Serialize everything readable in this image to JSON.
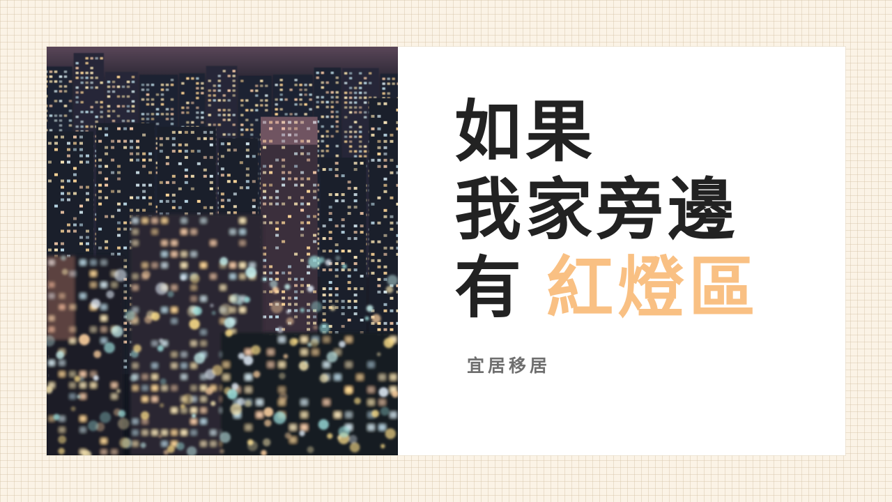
{
  "headline": {
    "line1": "如果",
    "line2": "我家旁邊",
    "line3_prefix": "有",
    "line3_highlight": "紅燈區"
  },
  "brand": {
    "name": "宜居移居"
  },
  "colors": {
    "background": "#fbf3e6",
    "card": "#ffffff",
    "headline_text": "#222222",
    "highlight": "#f9c083",
    "brand_text": "#6e6e6e"
  },
  "image": {
    "subject": "night-city-skyline-photo"
  }
}
